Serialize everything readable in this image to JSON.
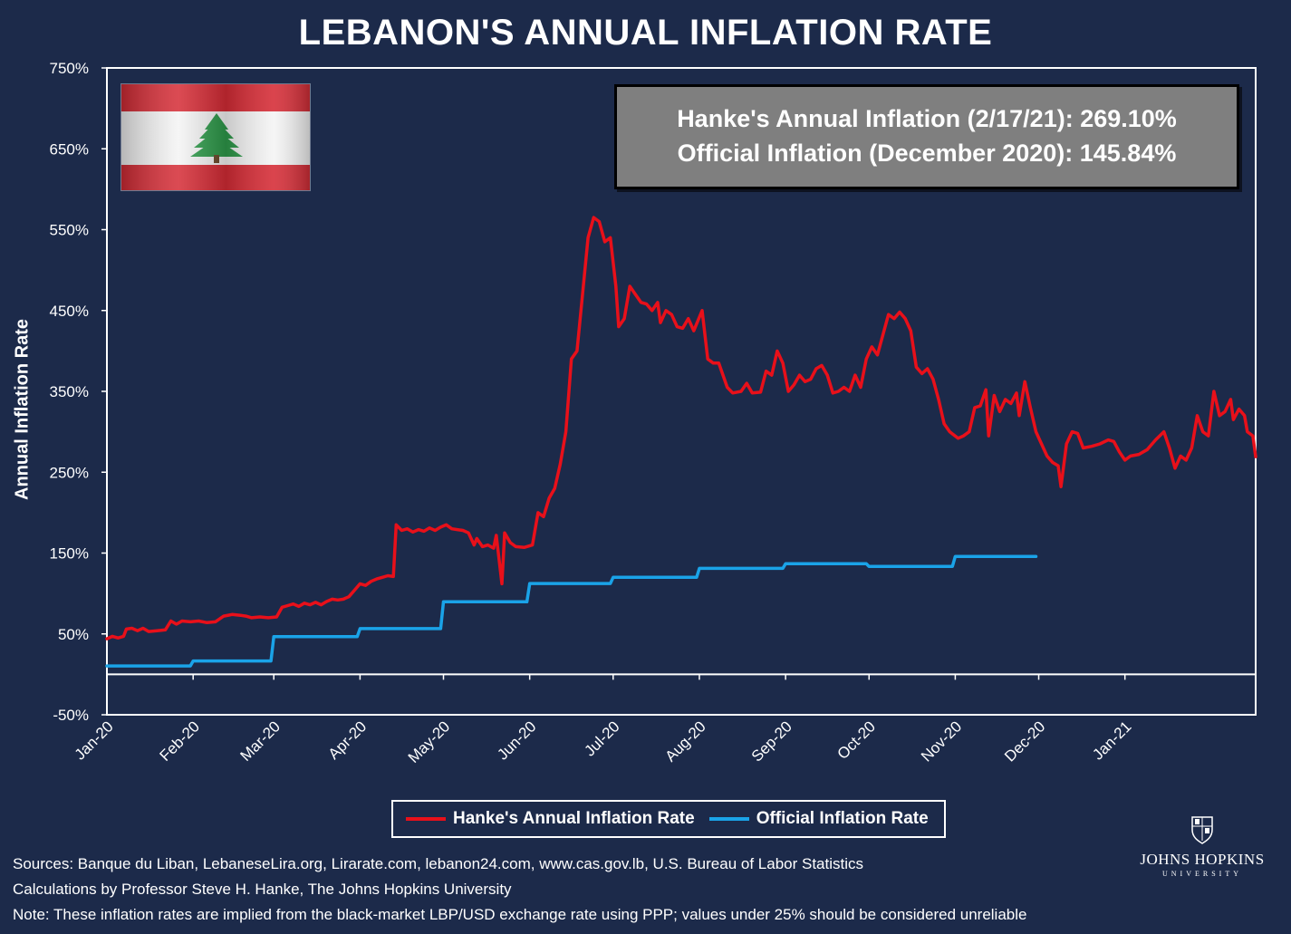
{
  "title": "LEBANON'S ANNUAL INFLATION RATE",
  "infobox": {
    "line1": "Hanke's Annual Inflation (2/17/21): 269.10%",
    "line2": "Official Inflation (December 2020): 145.84%"
  },
  "legend": {
    "hanke": "Hanke's Annual Inflation Rate",
    "official": "Official Inflation Rate"
  },
  "footer": {
    "sources": "Sources: Banque du Liban, LebaneseLira.org, Lirarate.com, lebanon24.com, www.cas.gov.lb, U.S. Bureau of Labor Statistics",
    "calc": "Calculations by Professor Steve H. Hanke, The Johns Hopkins University",
    "note": "Note: These inflation rates are implied from the black-market LBP/USD exchange rate using PPP; values under 25% should be considered unreliable"
  },
  "logo": {
    "name": "JOHNS HOPKINS",
    "sub": "UNIVERSITY"
  },
  "colors": {
    "background": "#1c2a4a",
    "hanke": "#e8101a",
    "official": "#1aa3e8",
    "axis": "#ffffff",
    "infobox": "#7f7f7f"
  },
  "chart_data": {
    "type": "line",
    "title": "LEBANON'S ANNUAL INFLATION RATE",
    "ylabel": "Annual Inflation Rate",
    "xlabel": "",
    "ylim": [
      -50,
      750
    ],
    "yticks": [
      "750%",
      "650%",
      "550%",
      "450%",
      "350%",
      "250%",
      "150%",
      "50%",
      "-50%"
    ],
    "xticks": [
      "Jan-20",
      "Feb-20",
      "Mar-20",
      "Apr-20",
      "May-20",
      "Jun-20",
      "Jul-20",
      "Aug-20",
      "Sep-20",
      "Oct-20",
      "Nov-20",
      "Dec-20",
      "Jan-21"
    ],
    "xrange": [
      "2020-01-01",
      "2021-02-17"
    ],
    "series": [
      {
        "name": "Hanke's Annual Inflation Rate",
        "color": "#e8101a",
        "points": [
          [
            "2020-01-01",
            44
          ],
          [
            "2020-01-03",
            47
          ],
          [
            "2020-01-05",
            45
          ],
          [
            "2020-01-07",
            47
          ],
          [
            "2020-01-08",
            56
          ],
          [
            "2020-01-10",
            57
          ],
          [
            "2020-01-12",
            54
          ],
          [
            "2020-01-14",
            57
          ],
          [
            "2020-01-16",
            53
          ],
          [
            "2020-01-19",
            54
          ],
          [
            "2020-01-22",
            55
          ],
          [
            "2020-01-24",
            66
          ],
          [
            "2020-01-26",
            62
          ],
          [
            "2020-01-28",
            66
          ],
          [
            "2020-01-31",
            65
          ],
          [
            "2020-02-03",
            66
          ],
          [
            "2020-02-06",
            64
          ],
          [
            "2020-02-09",
            65
          ],
          [
            "2020-02-12",
            72
          ],
          [
            "2020-02-15",
            74
          ],
          [
            "2020-02-18",
            73
          ],
          [
            "2020-02-20",
            72
          ],
          [
            "2020-02-22",
            70
          ],
          [
            "2020-02-25",
            71
          ],
          [
            "2020-02-28",
            70
          ],
          [
            "2020-03-02",
            71
          ],
          [
            "2020-03-04",
            83
          ],
          [
            "2020-03-06",
            85
          ],
          [
            "2020-03-08",
            87
          ],
          [
            "2020-03-10",
            84
          ],
          [
            "2020-03-12",
            88
          ],
          [
            "2020-03-14",
            86
          ],
          [
            "2020-03-16",
            89
          ],
          [
            "2020-03-18",
            86
          ],
          [
            "2020-03-20",
            90
          ],
          [
            "2020-03-22",
            93
          ],
          [
            "2020-03-24",
            92
          ],
          [
            "2020-03-26",
            93
          ],
          [
            "2020-03-28",
            96
          ],
          [
            "2020-03-30",
            104
          ],
          [
            "2020-04-01",
            112
          ],
          [
            "2020-04-03",
            110
          ],
          [
            "2020-04-05",
            115
          ],
          [
            "2020-04-07",
            118
          ],
          [
            "2020-04-09",
            120
          ],
          [
            "2020-04-11",
            122
          ],
          [
            "2020-04-13",
            121
          ],
          [
            "2020-04-14",
            185
          ],
          [
            "2020-04-16",
            178
          ],
          [
            "2020-04-18",
            180
          ],
          [
            "2020-04-20",
            176
          ],
          [
            "2020-04-22",
            179
          ],
          [
            "2020-04-24",
            177
          ],
          [
            "2020-04-26",
            181
          ],
          [
            "2020-04-28",
            178
          ],
          [
            "2020-04-30",
            182
          ],
          [
            "2020-05-02",
            185
          ],
          [
            "2020-05-04",
            180
          ],
          [
            "2020-05-06",
            179
          ],
          [
            "2020-05-08",
            178
          ],
          [
            "2020-05-10",
            175
          ],
          [
            "2020-05-12",
            160
          ],
          [
            "2020-05-13",
            168
          ],
          [
            "2020-05-15",
            158
          ],
          [
            "2020-05-17",
            160
          ],
          [
            "2020-05-19",
            156
          ],
          [
            "2020-05-20",
            172
          ],
          [
            "2020-05-22",
            112
          ],
          [
            "2020-05-23",
            175
          ],
          [
            "2020-05-25",
            163
          ],
          [
            "2020-05-27",
            158
          ],
          [
            "2020-05-30",
            157
          ],
          [
            "2020-06-02",
            160
          ],
          [
            "2020-06-04",
            200
          ],
          [
            "2020-06-06",
            195
          ],
          [
            "2020-06-08",
            218
          ],
          [
            "2020-06-10",
            230
          ],
          [
            "2020-06-12",
            260
          ],
          [
            "2020-06-14",
            300
          ],
          [
            "2020-06-16",
            390
          ],
          [
            "2020-06-18",
            400
          ],
          [
            "2020-06-20",
            470
          ],
          [
            "2020-06-22",
            540
          ],
          [
            "2020-06-24",
            565
          ],
          [
            "2020-06-26",
            560
          ],
          [
            "2020-06-28",
            535
          ],
          [
            "2020-06-30",
            540
          ],
          [
            "2020-07-02",
            480
          ],
          [
            "2020-07-03",
            430
          ],
          [
            "2020-07-05",
            440
          ],
          [
            "2020-07-07",
            480
          ],
          [
            "2020-07-09",
            470
          ],
          [
            "2020-07-11",
            460
          ],
          [
            "2020-07-13",
            458
          ],
          [
            "2020-07-15",
            450
          ],
          [
            "2020-07-17",
            460
          ],
          [
            "2020-07-18",
            435
          ],
          [
            "2020-07-20",
            450
          ],
          [
            "2020-07-22",
            445
          ],
          [
            "2020-07-24",
            430
          ],
          [
            "2020-07-26",
            428
          ],
          [
            "2020-07-28",
            440
          ],
          [
            "2020-07-30",
            425
          ],
          [
            "2020-08-02",
            450
          ],
          [
            "2020-08-04",
            390
          ],
          [
            "2020-08-06",
            385
          ],
          [
            "2020-08-08",
            385
          ],
          [
            "2020-08-11",
            355
          ],
          [
            "2020-08-13",
            348
          ],
          [
            "2020-08-16",
            350
          ],
          [
            "2020-08-18",
            360
          ],
          [
            "2020-08-20",
            348
          ],
          [
            "2020-08-23",
            349
          ],
          [
            "2020-08-25",
            375
          ],
          [
            "2020-08-27",
            370
          ],
          [
            "2020-08-29",
            400
          ],
          [
            "2020-08-31",
            385
          ],
          [
            "2020-09-02",
            350
          ],
          [
            "2020-09-04",
            358
          ],
          [
            "2020-09-06",
            370
          ],
          [
            "2020-09-08",
            362
          ],
          [
            "2020-09-10",
            365
          ],
          [
            "2020-09-12",
            378
          ],
          [
            "2020-09-14",
            382
          ],
          [
            "2020-09-16",
            370
          ],
          [
            "2020-09-18",
            348
          ],
          [
            "2020-09-20",
            350
          ],
          [
            "2020-09-22",
            355
          ],
          [
            "2020-09-24",
            350
          ],
          [
            "2020-09-26",
            370
          ],
          [
            "2020-09-28",
            355
          ],
          [
            "2020-09-30",
            390
          ],
          [
            "2020-10-02",
            405
          ],
          [
            "2020-10-04",
            395
          ],
          [
            "2020-10-06",
            420
          ],
          [
            "2020-10-08",
            445
          ],
          [
            "2020-10-10",
            440
          ],
          [
            "2020-10-12",
            448
          ],
          [
            "2020-10-14",
            440
          ],
          [
            "2020-10-16",
            425
          ],
          [
            "2020-10-18",
            380
          ],
          [
            "2020-10-20",
            372
          ],
          [
            "2020-10-22",
            378
          ],
          [
            "2020-10-24",
            365
          ],
          [
            "2020-10-26",
            340
          ],
          [
            "2020-10-28",
            310
          ],
          [
            "2020-10-30",
            300
          ],
          [
            "2020-11-02",
            292
          ],
          [
            "2020-11-04",
            295
          ],
          [
            "2020-11-06",
            300
          ],
          [
            "2020-11-08",
            330
          ],
          [
            "2020-11-10",
            332
          ],
          [
            "2020-11-12",
            352
          ],
          [
            "2020-11-13",
            295
          ],
          [
            "2020-11-15",
            345
          ],
          [
            "2020-11-17",
            325
          ],
          [
            "2020-11-19",
            340
          ],
          [
            "2020-11-21",
            335
          ],
          [
            "2020-11-23",
            348
          ],
          [
            "2020-11-24",
            320
          ],
          [
            "2020-11-26",
            362
          ],
          [
            "2020-11-28",
            330
          ],
          [
            "2020-11-30",
            300
          ],
          [
            "2020-12-02",
            285
          ],
          [
            "2020-12-04",
            270
          ],
          [
            "2020-12-06",
            262
          ],
          [
            "2020-12-08",
            258
          ],
          [
            "2020-12-09",
            232
          ],
          [
            "2020-12-11",
            285
          ],
          [
            "2020-12-13",
            300
          ],
          [
            "2020-12-15",
            298
          ],
          [
            "2020-12-17",
            280
          ],
          [
            "2020-12-20",
            282
          ],
          [
            "2020-12-23",
            285
          ],
          [
            "2020-12-26",
            290
          ],
          [
            "2020-12-28",
            288
          ],
          [
            "2020-12-30",
            275
          ],
          [
            "2021-01-01",
            265
          ],
          [
            "2021-01-03",
            270
          ],
          [
            "2021-01-06",
            272
          ],
          [
            "2021-01-09",
            278
          ],
          [
            "2021-01-12",
            290
          ],
          [
            "2021-01-15",
            300
          ],
          [
            "2021-01-17",
            280
          ],
          [
            "2021-01-19",
            255
          ],
          [
            "2021-01-21",
            270
          ],
          [
            "2021-01-23",
            265
          ],
          [
            "2021-01-25",
            280
          ],
          [
            "2021-01-27",
            320
          ],
          [
            "2021-01-29",
            300
          ],
          [
            "2021-01-31",
            295
          ],
          [
            "2021-02-02",
            350
          ],
          [
            "2021-02-04",
            320
          ],
          [
            "2021-02-06",
            325
          ],
          [
            "2021-02-08",
            340
          ],
          [
            "2021-02-09",
            315
          ],
          [
            "2021-02-11",
            328
          ],
          [
            "2021-02-13",
            320
          ],
          [
            "2021-02-14",
            300
          ],
          [
            "2021-02-16",
            295
          ],
          [
            "2021-02-17",
            269.1
          ]
        ]
      },
      {
        "name": "Official Inflation Rate",
        "color": "#1aa3e8",
        "points": [
          [
            "2020-01-01",
            10.4
          ],
          [
            "2020-01-31",
            10.4
          ],
          [
            "2020-02-01",
            16.5
          ],
          [
            "2020-02-29",
            16.5
          ],
          [
            "2020-03-01",
            46.6
          ],
          [
            "2020-03-31",
            46.6
          ],
          [
            "2020-04-01",
            56.5
          ],
          [
            "2020-04-30",
            56.5
          ],
          [
            "2020-05-01",
            89.7
          ],
          [
            "2020-05-31",
            89.7
          ],
          [
            "2020-06-01",
            112.4
          ],
          [
            "2020-06-30",
            112.4
          ],
          [
            "2020-07-01",
            120.0
          ],
          [
            "2020-07-31",
            120.0
          ],
          [
            "2020-08-01",
            131.1
          ],
          [
            "2020-08-31",
            131.1
          ],
          [
            "2020-09-01",
            136.8
          ],
          [
            "2020-09-30",
            136.8
          ],
          [
            "2020-10-01",
            133.5
          ],
          [
            "2020-10-31",
            133.5
          ],
          [
            "2020-11-01",
            145.8
          ],
          [
            "2020-11-30",
            145.84
          ]
        ]
      }
    ]
  }
}
